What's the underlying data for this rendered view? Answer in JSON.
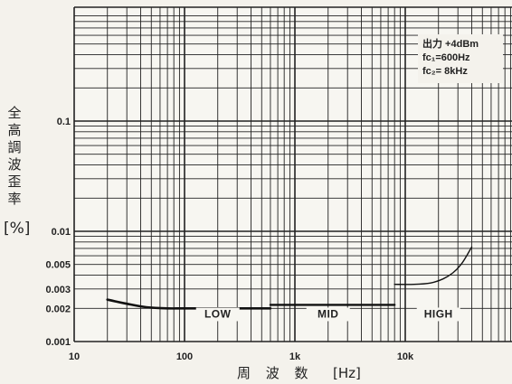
{
  "chart_data": {
    "type": "line",
    "x_scale": "log",
    "y_scale": "log",
    "xlim": [
      10,
      100000
    ],
    "ylim": [
      0.001,
      1
    ],
    "x_ticks": [
      {
        "value": 10,
        "label": "10"
      },
      {
        "value": 100,
        "label": "100"
      },
      {
        "value": 1000,
        "label": "1k"
      },
      {
        "value": 10000,
        "label": "10k"
      }
    ],
    "y_ticks": [
      {
        "value": 0.1,
        "label": "0.1"
      },
      {
        "value": 0.01,
        "label": "0.01"
      },
      {
        "value": 0.005,
        "label": "0.005"
      },
      {
        "value": 0.003,
        "label": "0.003"
      },
      {
        "value": 0.002,
        "label": "0.002"
      },
      {
        "value": 0.001,
        "label": "0.001"
      }
    ],
    "ylabel_chars": [
      "全",
      "高",
      "調",
      "波",
      "歪",
      "率"
    ],
    "ylabel_unit": "[%]",
    "xlabel": "周 波 数",
    "xlabel_unit": "[Hz]",
    "annotation": [
      "出力 +4dBm",
      "fc₁=600Hz",
      "fc₂= 8kHz"
    ],
    "grid": true,
    "series": [
      {
        "name": "LOW",
        "x": [
          20,
          30,
          45,
          70,
          100,
          200,
          400,
          600
        ],
        "y": [
          0.0024,
          0.0022,
          0.00205,
          0.002,
          0.002,
          0.002,
          0.002,
          0.002
        ]
      },
      {
        "name": "MID",
        "x": [
          600,
          1000,
          3000,
          8000
        ],
        "y": [
          0.00215,
          0.00215,
          0.00215,
          0.00215
        ]
      },
      {
        "name": "HIGH",
        "x": [
          8000,
          12000,
          17000,
          22000,
          27000,
          32000,
          36000,
          40000
        ],
        "y": [
          0.0033,
          0.0033,
          0.0034,
          0.0037,
          0.0042,
          0.005,
          0.006,
          0.0072
        ]
      }
    ],
    "band_labels": [
      {
        "label": "LOW",
        "x": 200,
        "y": 0.00165
      },
      {
        "label": "MID",
        "x": 2000,
        "y": 0.00165
      },
      {
        "label": "HIGH",
        "x": 20000,
        "y": 0.00165
      }
    ]
  }
}
